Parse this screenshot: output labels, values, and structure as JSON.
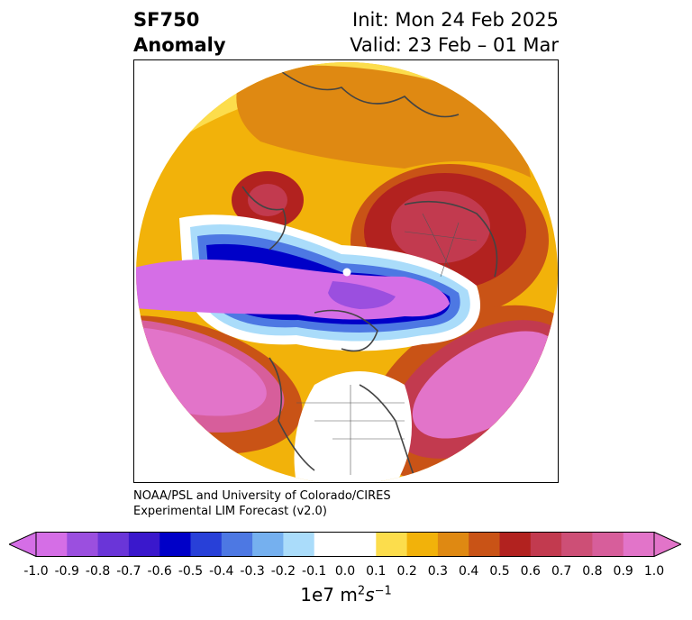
{
  "title": {
    "left_line1": "SF750",
    "left_line2": "Anomaly",
    "right_line1": "Init: Mon 24 Feb 2025",
    "right_line2": "Valid: 23 Feb – 01 Mar"
  },
  "credit": {
    "line1": "NOAA/PSL and University of Colorado/CIRES",
    "line2": "Experimental LIM Forecast (v2.0)"
  },
  "colorbar": {
    "label_prefix": "1e7 m",
    "label_exp1": "2",
    "label_mid": "s",
    "label_exp2": "−1",
    "ticks": [
      "-1.0",
      "-0.9",
      "-0.8",
      "-0.7",
      "-0.6",
      "-0.5",
      "-0.4",
      "-0.3",
      "-0.2",
      "-0.1",
      "0.0",
      "0.1",
      "0.2",
      "0.3",
      "0.4",
      "0.5",
      "0.6",
      "0.7",
      "0.8",
      "0.9",
      "1.0"
    ],
    "colors": [
      "#d56ee6",
      "#9b4fdf",
      "#6a35d8",
      "#3a18cc",
      "#0000c8",
      "#2840d8",
      "#4d78e3",
      "#75b0ef",
      "#aadcfa",
      "#ffffff",
      "#ffffff",
      "#fcdd4c",
      "#f2b20a",
      "#df8912",
      "#c95316",
      "#b2221f",
      "#c23a4f",
      "#cd4f76",
      "#d75e9b",
      "#e274c9"
    ],
    "extend_low_color": "#d56ee6",
    "extend_high_color": "#e274c9"
  }
}
